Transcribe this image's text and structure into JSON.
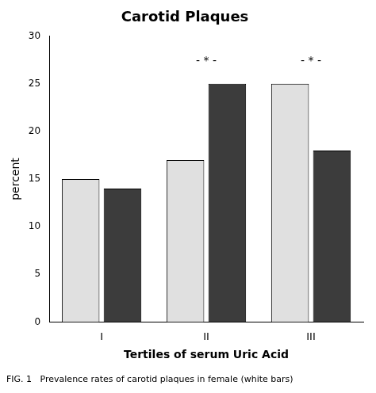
{
  "chart_data": {
    "type": "bar",
    "title": "Carotid Plaques",
    "x_label": "Tertiles of serum Uric Acid",
    "y_label": "percent",
    "categories": [
      "I",
      "II",
      "III"
    ],
    "series": [
      {
        "color": "#e0e0e0",
        "values": [
          15,
          17,
          25
        ]
      },
      {
        "color": "#3c3c3c",
        "values": [
          14,
          25,
          18
        ]
      }
    ],
    "ylim": [
      0,
      30
    ],
    "yticks": [
      0,
      5,
      10,
      15,
      20,
      25,
      30
    ],
    "annotations": [
      {
        "text": "- * -",
        "category": "II",
        "y": 26.8
      },
      {
        "text": "- * -",
        "category": "III",
        "y": 26.8
      }
    ],
    "caption": "FIG. 1   Prevalence rates of carotid plaques in female (white bars)",
    "grid": false
  }
}
